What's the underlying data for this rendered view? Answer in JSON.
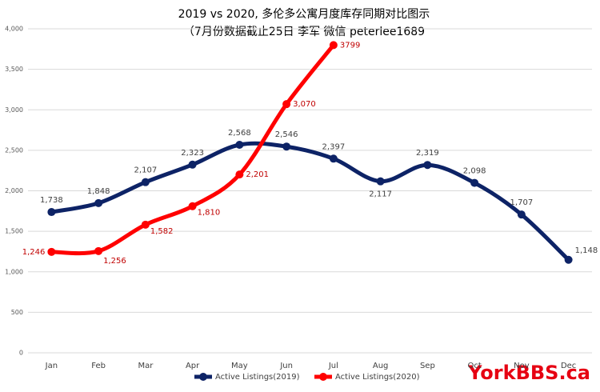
{
  "chart_data": {
    "type": "line",
    "title": "2019 vs 2020, 多伦多公寓月度库存同期对比图示",
    "subtitle": "（7月份数据截止25日 李军  微信 peterlee1689",
    "watermark": "YorkBBS.ca",
    "categories": [
      "Jan",
      "Feb",
      "Mar",
      "Apr",
      "May",
      "Jun",
      "Jul",
      "Aug",
      "Sep",
      "Oct",
      "Nov",
      "Dec"
    ],
    "series": [
      {
        "name": "Active Listings(2019)",
        "color": "#0d2366",
        "values": [
          1738,
          1848,
          2107,
          2323,
          2568,
          2546,
          2397,
          2117,
          2319,
          2098,
          1707,
          1148
        ],
        "value_labels": [
          "1,738",
          "1,848",
          "2,107",
          "2,323",
          "2,568",
          "2,546",
          "2,397",
          "2,117",
          "2,319",
          "2,098",
          "1,707",
          "1,148"
        ]
      },
      {
        "name": "Active Listings(2020)",
        "color": "#ff0000",
        "values": [
          1246,
          1256,
          1582,
          1810,
          2201,
          3070,
          3799,
          null,
          null,
          null,
          null,
          null
        ],
        "value_labels": [
          "1,246",
          "1,256",
          "1,582",
          "1,810",
          "2,201",
          "3,070",
          "3799",
          null,
          null,
          null,
          null,
          null
        ]
      }
    ],
    "ylim": [
      0,
      4000
    ],
    "yticks": [
      0,
      500,
      {
        "value": 1000,
        "label": "1,000"
      },
      {
        "value": 1500,
        "label": "1,500"
      },
      {
        "value": 2000,
        "label": "2,000"
      },
      {
        "value": 2500,
        "label": "2,500"
      },
      {
        "value": 3000,
        "label": "3,000"
      },
      {
        "value": 3500,
        "label": "3,500"
      },
      {
        "value": 4000,
        "label": "4,000"
      }
    ],
    "grid": true,
    "legend": "bottom"
  }
}
